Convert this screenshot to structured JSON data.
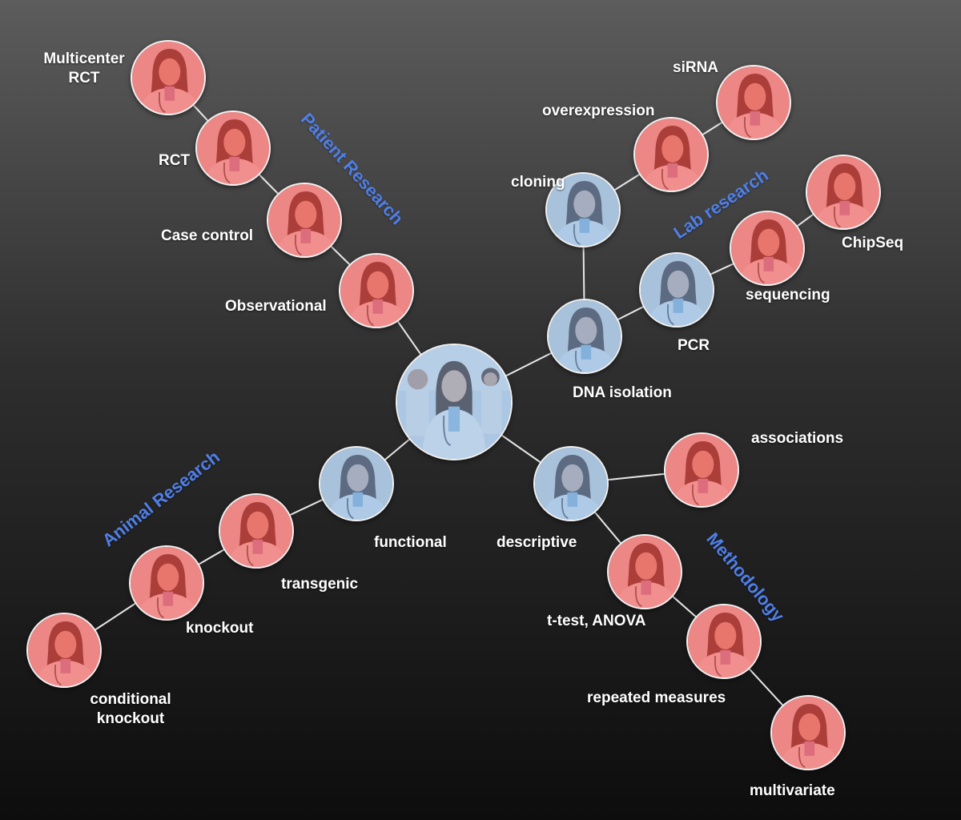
{
  "colors": {
    "red_tint": "#e84848",
    "blue_tint": "#6e9fd2",
    "category_text": "#4f7fe8",
    "edge": "#e8e8e8"
  },
  "categories": {
    "patient": "Patient Research",
    "lab": "Lab research",
    "animal": "Animal Research",
    "methodology": "Methodology"
  },
  "nodes": {
    "multicenter_rct": {
      "line1": "Multicenter",
      "line2": "RCT"
    },
    "rct": "RCT",
    "case_control": "Case control",
    "observational": "Observational",
    "sirna": "siRNA",
    "overexpression": "overexpression",
    "cloning": "cloning",
    "chipseq": "ChipSeq",
    "sequencing": "sequencing",
    "pcr": "PCR",
    "dna_isolation": "DNA isolation",
    "associations": "associations",
    "descriptive": "descriptive",
    "t_test_anova": "t-test, ANOVA",
    "repeated_measures": "repeated measures",
    "multivariate": "multivariate",
    "functional": "functional",
    "transgenic": "transgenic",
    "knockout": "knockout",
    "conditional_knockout": {
      "line1": "conditional",
      "line2": "knockout"
    }
  }
}
